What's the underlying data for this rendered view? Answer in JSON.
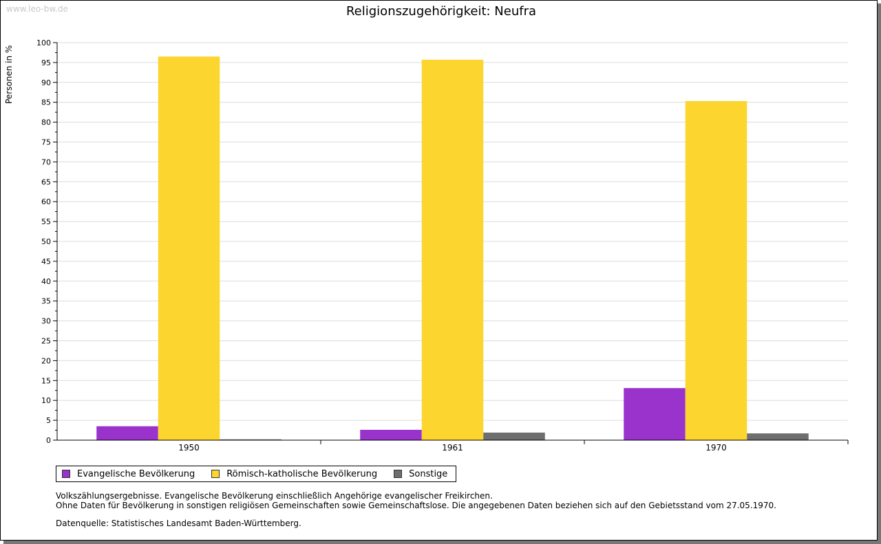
{
  "watermark": "www.leo-bw.de",
  "chart_data": {
    "type": "bar",
    "title": "Religionszugehörigkeit: Neufra",
    "ylabel": "Personen in %",
    "xlabel": "",
    "ylim": [
      0,
      100
    ],
    "yticks": [
      "0",
      "5",
      "10",
      "15",
      "20",
      "25",
      "30",
      "35",
      "40",
      "45",
      "50",
      "55",
      "60",
      "65",
      "70",
      "75",
      "80",
      "85",
      "90",
      "95",
      "100"
    ],
    "categories": [
      "1950",
      "1961",
      "1970"
    ],
    "series": [
      {
        "name": "Evangelische Bevölkerung",
        "color": "#9933cc",
        "values": [
          3.5,
          2.6,
          13.1
        ]
      },
      {
        "name": "Römisch-katholische Bevölkerung",
        "color": "#fcd52e",
        "values": [
          96.5,
          95.7,
          85.3
        ]
      },
      {
        "name": "Sonstige",
        "color": "#6e6e6e",
        "values": [
          0.2,
          1.9,
          1.7
        ]
      }
    ],
    "grid": true,
    "legend": "bottom-left"
  },
  "notes": {
    "line1": "Volkszählungsergebnisse. Evangelische Bevölkerung einschließlich Angehörige evangelischer Freikirchen.",
    "line2": "Ohne Daten für Bevölkerung in sonstigen religiösen Gemeinschaften sowie Gemeinschaftslose. Die angegebenen Daten beziehen sich auf den Gebietsstand vom 27.05.1970.",
    "source": "Datenquelle: Statistisches Landesamt Baden-Württemberg."
  }
}
